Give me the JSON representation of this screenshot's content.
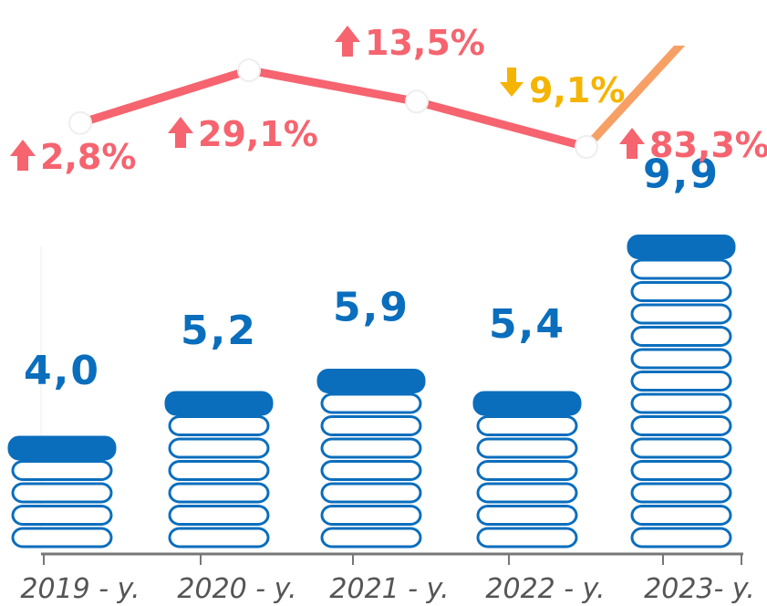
{
  "chart_data": {
    "type": "bar",
    "categories": [
      "2019 - y.",
      "2020 - y.",
      "2021 - y.",
      "2022 - y.",
      "2023- y."
    ],
    "values": [
      4.0,
      5.2,
      5.9,
      5.4,
      9.9
    ],
    "value_labels": [
      "4,0",
      "5,2",
      "5,9",
      "5,4",
      "9,9"
    ],
    "color": "#0a6ebd",
    "ylim": [
      0,
      12
    ],
    "y2lim": [
      -20,
      40
    ],
    "line": {
      "axis": "y2",
      "values": [
        2.8,
        29.1,
        13.5,
        -9.1,
        83.3
      ],
      "value_labels": [
        "2,8%",
        "29,1%",
        "13,5%",
        "9,1%",
        "83,3%"
      ],
      "color": "#f5646f",
      "down_color": "#f5b400",
      "last_segment_color": "#f7a066"
    }
  }
}
